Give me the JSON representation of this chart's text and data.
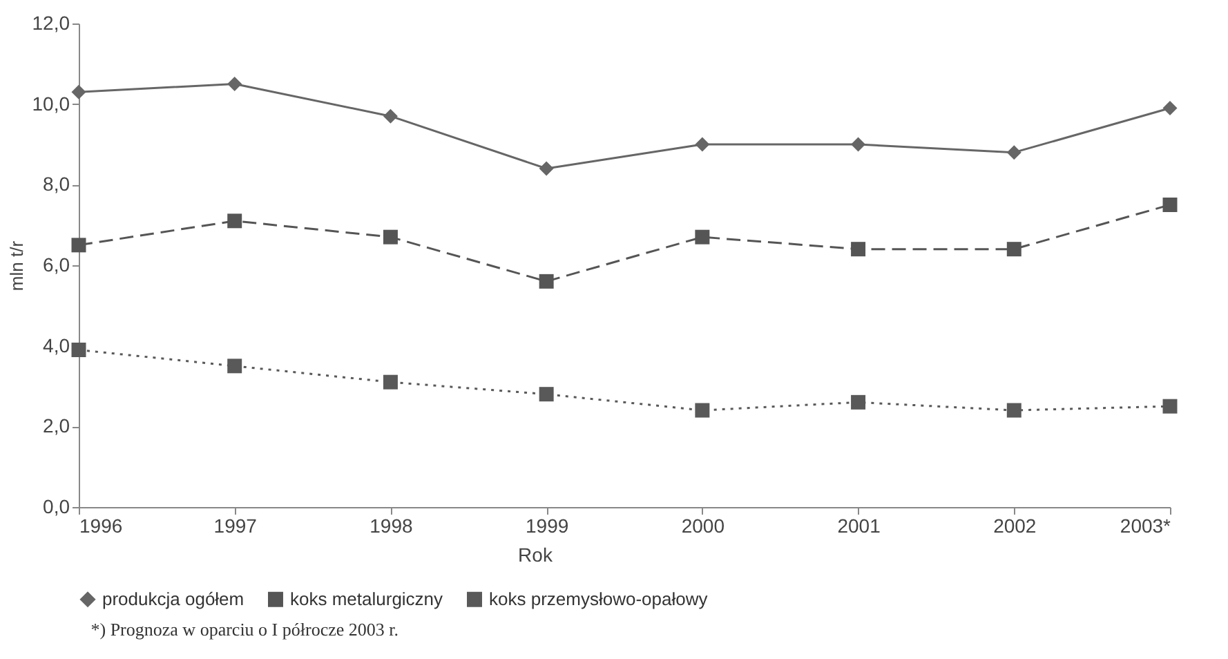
{
  "chart_data": {
    "type": "line",
    "xlabel": "Rok",
    "ylabel": "mln t/r",
    "categories": [
      "1996",
      "1997",
      "1998",
      "1999",
      "2000",
      "2001",
      "2002",
      "2003*"
    ],
    "series": [
      {
        "name": "produkcja ogółem",
        "color": "#666666",
        "marker": "diamond",
        "line_style": "solid",
        "values": [
          10.3,
          10.5,
          9.7,
          8.4,
          9.0,
          9.0,
          8.8,
          9.9
        ]
      },
      {
        "name": "koks metalurgiczny",
        "color": "#555555",
        "marker": "square",
        "line_style": "dashed",
        "values": [
          6.5,
          7.1,
          6.7,
          5.6,
          6.7,
          6.4,
          6.4,
          7.5
        ]
      },
      {
        "name": "koks przemysłowo-opałowy",
        "color": "#595959",
        "marker": "square",
        "line_style": "dotted",
        "values": [
          3.9,
          3.5,
          3.1,
          2.8,
          2.4,
          2.6,
          2.4,
          2.5
        ]
      }
    ],
    "ylim": [
      0,
      12
    ],
    "yticks": [
      {
        "value": 0,
        "label": "0,0"
      },
      {
        "value": 2,
        "label": "2,0"
      },
      {
        "value": 4,
        "label": "4,0"
      },
      {
        "value": 6,
        "label": "6,0"
      },
      {
        "value": 8,
        "label": "8,0"
      },
      {
        "value": 10,
        "label": "10,0"
      },
      {
        "value": 12,
        "label": "12,0"
      }
    ],
    "grid": false,
    "legend": "bottom",
    "annotations": [
      "*) Prognoza w oparciu o I półrocze 2003 r."
    ]
  }
}
